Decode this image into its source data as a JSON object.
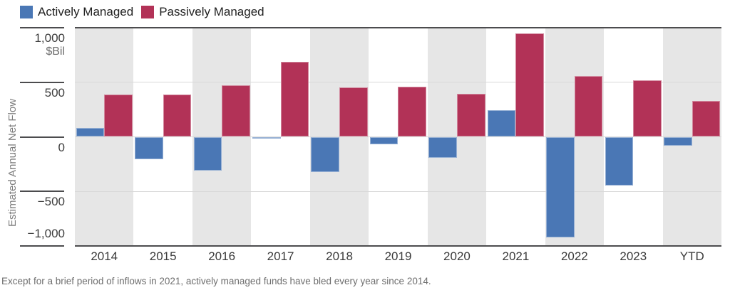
{
  "legend": {
    "items": [
      {
        "label": "Actively Managed",
        "color": "#4a77b5"
      },
      {
        "label": "Passively Managed",
        "color": "#b23257"
      }
    ]
  },
  "y_axis": {
    "title": "Estimated Annual Net Flow",
    "unit": "$Bil",
    "tick_labels": [
      "1,000",
      "500",
      "0",
      "−500",
      "−1,000"
    ],
    "tick_values": [
      1000,
      500,
      0,
      -500,
      -1000
    ]
  },
  "footnote": "Except for a brief period of inflows in 2021, actively managed funds have bled every year since 2014.",
  "chart_data": {
    "type": "bar",
    "title": "",
    "ylabel": "Estimated Annual Net Flow",
    "unit": "$Bil",
    "ylim": [
      -1000,
      1000
    ],
    "grid": "on",
    "gridline_values": [
      500,
      0,
      -500
    ],
    "legend_position": "top-left",
    "categories": [
      "2014",
      "2015",
      "2016",
      "2017",
      "2018",
      "2019",
      "2020",
      "2021",
      "2022",
      "2023",
      "YTD"
    ],
    "series": [
      {
        "name": "Actively Managed",
        "color": "#4a77b5",
        "values": [
          80,
          -205,
          -310,
          -5,
          -325,
          -70,
          -190,
          245,
          -925,
          -445,
          -80
        ]
      },
      {
        "name": "Passively Managed",
        "color": "#b23257",
        "values": [
          390,
          390,
          470,
          690,
          455,
          460,
          395,
          950,
          555,
          520,
          330
        ]
      }
    ],
    "band_colors": [
      "#e6e6e6",
      "#ffffff"
    ]
  }
}
